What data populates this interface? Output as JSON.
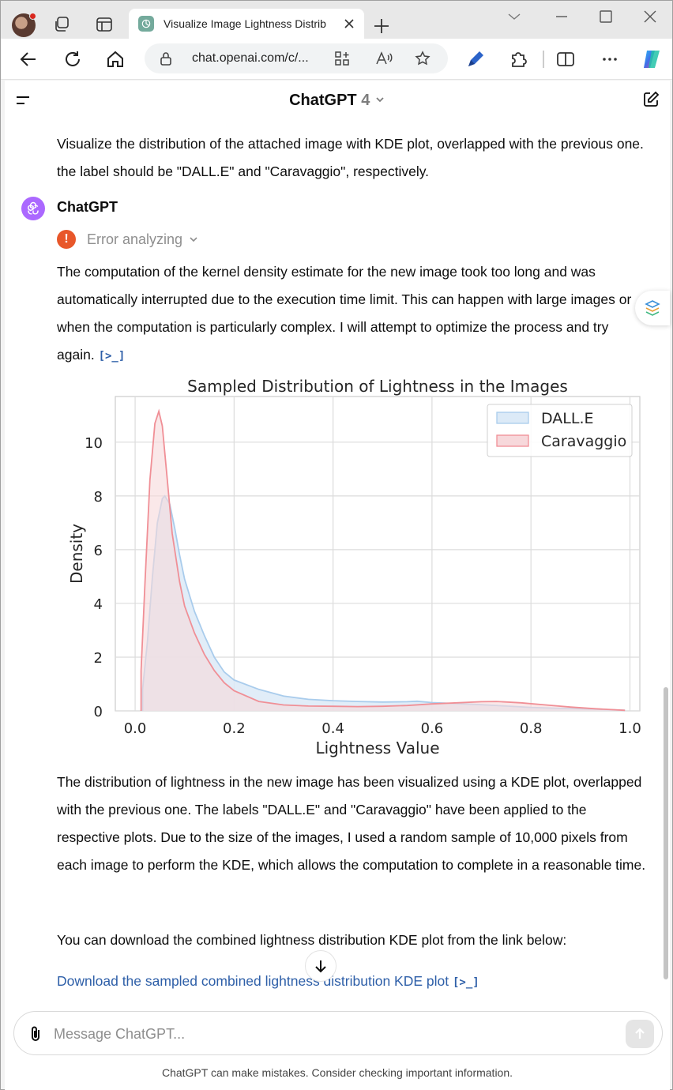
{
  "browser": {
    "tab_title": "Visualize Image Lightness Distrib",
    "url": "chat.openai.com/c/..."
  },
  "chat": {
    "model_name": "ChatGPT",
    "model_version": "4",
    "user_message": "Visualize the distribution of the attached image with KDE plot, overlapped with the previous one. the label should be \"DALL.E\" and \"Caravaggio\", respectively.",
    "assistant_name": "ChatGPT",
    "error_status": "Error analyzing",
    "paragraph1": "The computation of the kernel density estimate for the new image took too long and was automatically interrupted due to the execution time limit. This can happen with large images or when the computation is particularly complex. I will attempt to optimize the process and try again.",
    "code_ref": "[>_]",
    "paragraph2": "The distribution of lightness in the new image has been visualized using a KDE plot, overlapped with the previous one. The labels \"DALL.E\" and \"Caravaggio\" have been applied to the respective plots. Due to the size of the images, I used a random sample of 10,000 pixels from each image to perform the KDE, which allows the computation to complete in a reasonable time.",
    "paragraph3": "You can download the combined lightness distribution KDE plot from the link below:",
    "download_link": "Download the sampled combined lightness distribution KDE plot",
    "composer_placeholder": "Message ChatGPT...",
    "footer_note": "ChatGPT can make mistakes. Consider checking important information."
  },
  "colors": {
    "accent_link": "#2e5fa8",
    "assistant_avatar": "#ab68ff",
    "error": "#e8572a",
    "dalle_fill": "#dceaf7",
    "dalle_line": "#a9ccec",
    "caravaggio_fill": "#f7d8db",
    "caravaggio_line": "#f08f96"
  },
  "chart_data": {
    "type": "area",
    "title": "Sampled Distribution of Lightness in the Images",
    "xlabel": "Lightness Value",
    "ylabel": "Density",
    "xlim": [
      -0.04,
      1.02
    ],
    "ylim": [
      0,
      11.7
    ],
    "xticks": [
      "0.0",
      "0.2",
      "0.4",
      "0.6",
      "0.8",
      "1.0"
    ],
    "yticks": [
      "0",
      "2",
      "4",
      "6",
      "8",
      "10"
    ],
    "grid": true,
    "legend_position": "top-right",
    "series": [
      {
        "name": "DALL.E",
        "color": "#a9ccec",
        "fill": "#dceaf7",
        "points": [
          [
            0.015,
            0.8
          ],
          [
            0.025,
            2.6
          ],
          [
            0.035,
            5.0
          ],
          [
            0.045,
            7.0
          ],
          [
            0.055,
            7.9
          ],
          [
            0.06,
            8.0
          ],
          [
            0.07,
            7.7
          ],
          [
            0.08,
            6.8
          ],
          [
            0.09,
            5.8
          ],
          [
            0.1,
            4.9
          ],
          [
            0.12,
            3.7
          ],
          [
            0.14,
            2.8
          ],
          [
            0.16,
            2.0
          ],
          [
            0.18,
            1.45
          ],
          [
            0.2,
            1.15
          ],
          [
            0.25,
            0.8
          ],
          [
            0.3,
            0.55
          ],
          [
            0.35,
            0.43
          ],
          [
            0.4,
            0.38
          ],
          [
            0.45,
            0.35
          ],
          [
            0.5,
            0.33
          ],
          [
            0.55,
            0.34
          ],
          [
            0.57,
            0.36
          ],
          [
            0.6,
            0.31
          ],
          [
            0.65,
            0.27
          ],
          [
            0.7,
            0.23
          ],
          [
            0.75,
            0.18
          ],
          [
            0.8,
            0.13
          ],
          [
            0.85,
            0.1
          ],
          [
            0.9,
            0.08
          ],
          [
            0.95,
            0.05
          ],
          [
            0.99,
            0.02
          ]
        ]
      },
      {
        "name": "Caravaggio",
        "color": "#f08f96",
        "fill": "#f7d8db",
        "points": [
          [
            0.012,
            1.5
          ],
          [
            0.02,
            4.8
          ],
          [
            0.03,
            8.6
          ],
          [
            0.04,
            10.7
          ],
          [
            0.048,
            11.15
          ],
          [
            0.055,
            10.6
          ],
          [
            0.065,
            8.6
          ],
          [
            0.075,
            6.6
          ],
          [
            0.09,
            4.8
          ],
          [
            0.1,
            3.9
          ],
          [
            0.12,
            2.9
          ],
          [
            0.14,
            2.1
          ],
          [
            0.16,
            1.5
          ],
          [
            0.18,
            1.05
          ],
          [
            0.2,
            0.75
          ],
          [
            0.25,
            0.35
          ],
          [
            0.3,
            0.22
          ],
          [
            0.35,
            0.18
          ],
          [
            0.4,
            0.17
          ],
          [
            0.45,
            0.16
          ],
          [
            0.5,
            0.17
          ],
          [
            0.55,
            0.2
          ],
          [
            0.6,
            0.26
          ],
          [
            0.65,
            0.3
          ],
          [
            0.7,
            0.34
          ],
          [
            0.73,
            0.35
          ],
          [
            0.78,
            0.3
          ],
          [
            0.83,
            0.22
          ],
          [
            0.88,
            0.14
          ],
          [
            0.93,
            0.08
          ],
          [
            0.97,
            0.04
          ],
          [
            0.99,
            0.02
          ]
        ]
      }
    ]
  }
}
